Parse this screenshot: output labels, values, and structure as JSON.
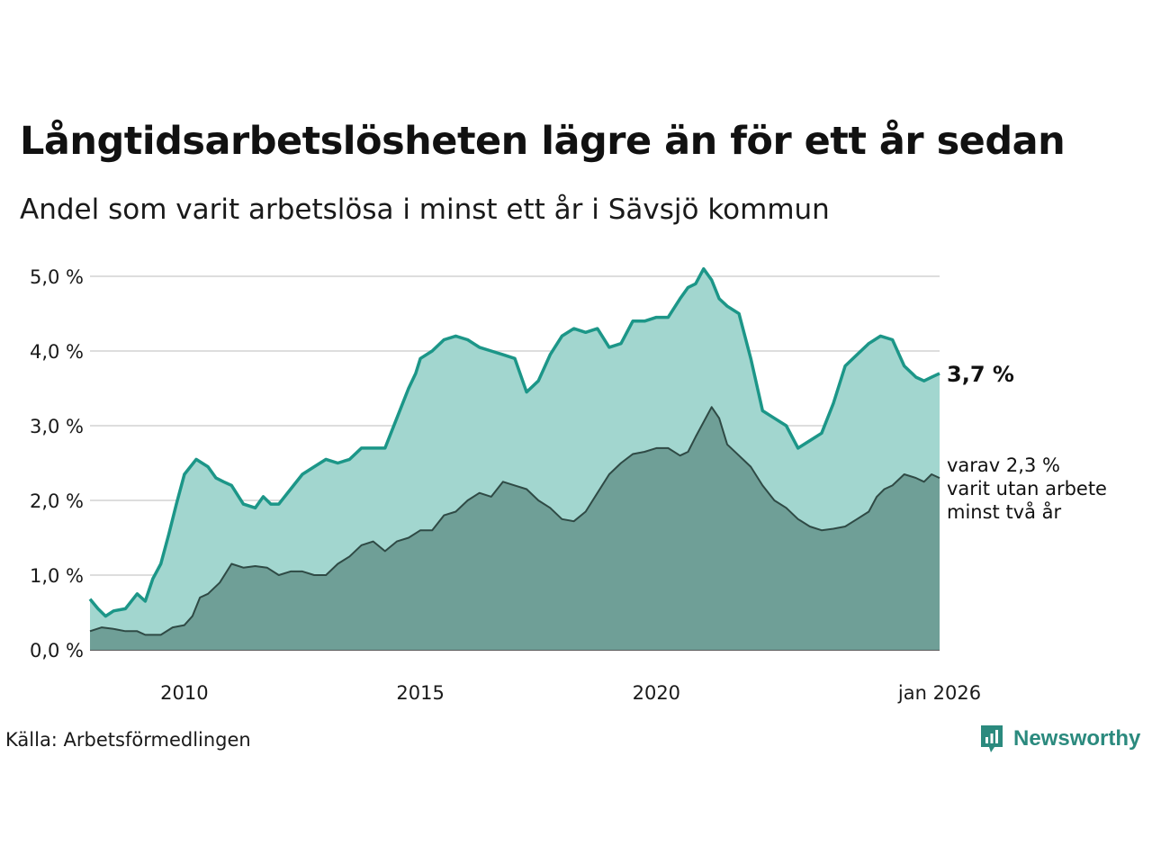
{
  "title": "Långtidsarbetslösheten lägre än för ett år sedan",
  "subtitle": "Andel som varit arbetslösa i minst ett år i Sävsjö kommun",
  "source": "Källa: Arbetsförmedlingen",
  "brand": "Newsworthy",
  "colors": {
    "upper_fill": "#a2d6cf",
    "upper_line": "#1c9688",
    "lower_fill": "#6f9f97",
    "lower_line": "#2f4a45",
    "grid": "#dddddd",
    "brand": "#2b8a7e"
  },
  "chart_data": {
    "type": "area",
    "title": "Långtidsarbetslösheten lägre än för ett år sedan",
    "ylabel": "",
    "xlabel": "",
    "ylim": [
      0,
      5.0
    ],
    "xlim": [
      2008.0,
      2026.0
    ],
    "y_ticks": [
      0,
      1,
      2,
      3,
      4,
      5
    ],
    "y_tick_labels": [
      "0,0 %",
      "1,0 %",
      "2,0 %",
      "3,0 %",
      "4,0 %",
      "5,0 %"
    ],
    "x_ticks": [
      2010,
      2015,
      2020,
      2026
    ],
    "x_tick_labels": [
      "2010",
      "2015",
      "2020",
      "jan 2026"
    ],
    "grid": true,
    "annotations": {
      "last_value": "3,7 %",
      "lower_note": [
        "varav 2,3 %",
        "varit utan arbete",
        "minst två år"
      ]
    },
    "series": [
      {
        "name": "Minst ett år",
        "x": [
          2008.0,
          2008.17,
          2008.33,
          2008.5,
          2008.75,
          2009.0,
          2009.17,
          2009.33,
          2009.5,
          2009.67,
          2009.83,
          2010.0,
          2010.25,
          2010.5,
          2010.67,
          2010.83,
          2011.0,
          2011.25,
          2011.5,
          2011.67,
          2011.83,
          2012.0,
          2012.25,
          2012.5,
          2012.75,
          2013.0,
          2013.25,
          2013.5,
          2013.75,
          2014.0,
          2014.25,
          2014.5,
          2014.75,
          2014.9,
          2015.0,
          2015.25,
          2015.5,
          2015.75,
          2016.0,
          2016.25,
          2016.5,
          2016.75,
          2017.0,
          2017.25,
          2017.5,
          2017.75,
          2018.0,
          2018.25,
          2018.5,
          2018.75,
          2019.0,
          2019.25,
          2019.5,
          2019.75,
          2020.0,
          2020.25,
          2020.5,
          2020.67,
          2020.83,
          2021.0,
          2021.17,
          2021.33,
          2021.5,
          2021.75,
          2022.0,
          2022.25,
          2022.5,
          2022.75,
          2023.0,
          2023.25,
          2023.5,
          2023.75,
          2024.0,
          2024.25,
          2024.5,
          2024.75,
          2025.0,
          2025.25,
          2025.5,
          2025.67,
          2025.83,
          2026.0
        ],
        "values": [
          0.68,
          0.55,
          0.45,
          0.52,
          0.55,
          0.75,
          0.65,
          0.95,
          1.15,
          1.55,
          1.95,
          2.35,
          2.55,
          2.45,
          2.3,
          2.25,
          2.2,
          1.95,
          1.9,
          2.05,
          1.95,
          1.95,
          2.15,
          2.35,
          2.45,
          2.55,
          2.5,
          2.55,
          2.7,
          2.7,
          2.7,
          3.1,
          3.5,
          3.7,
          3.9,
          4.0,
          4.15,
          4.2,
          4.15,
          4.05,
          4.0,
          3.95,
          3.9,
          3.45,
          3.6,
          3.95,
          4.2,
          4.3,
          4.25,
          4.3,
          4.05,
          4.1,
          4.4,
          4.4,
          4.45,
          4.45,
          4.7,
          4.85,
          4.9,
          5.1,
          4.95,
          4.7,
          4.6,
          4.5,
          3.9,
          3.2,
          3.1,
          3.0,
          2.7,
          2.8,
          2.9,
          3.3,
          3.8,
          3.95,
          4.1,
          4.2,
          4.15,
          3.8,
          3.65,
          3.6,
          3.65,
          3.7
        ]
      },
      {
        "name": "Minst två år",
        "x": [
          2008.0,
          2008.25,
          2008.5,
          2008.75,
          2009.0,
          2009.17,
          2009.5,
          2009.75,
          2010.0,
          2010.17,
          2010.33,
          2010.5,
          2010.75,
          2011.0,
          2011.25,
          2011.5,
          2011.75,
          2012.0,
          2012.25,
          2012.5,
          2012.75,
          2013.0,
          2013.25,
          2013.5,
          2013.75,
          2014.0,
          2014.25,
          2014.5,
          2014.75,
          2015.0,
          2015.25,
          2015.5,
          2015.75,
          2016.0,
          2016.25,
          2016.5,
          2016.75,
          2017.0,
          2017.25,
          2017.5,
          2017.75,
          2018.0,
          2018.25,
          2018.5,
          2018.75,
          2019.0,
          2019.25,
          2019.5,
          2019.75,
          2020.0,
          2020.25,
          2020.5,
          2020.67,
          2020.83,
          2021.0,
          2021.17,
          2021.33,
          2021.5,
          2021.75,
          2022.0,
          2022.25,
          2022.5,
          2022.75,
          2023.0,
          2023.25,
          2023.5,
          2023.75,
          2024.0,
          2024.25,
          2024.5,
          2024.67,
          2024.83,
          2025.0,
          2025.25,
          2025.5,
          2025.67,
          2025.83,
          2026.0
        ],
        "values": [
          0.25,
          0.3,
          0.28,
          0.25,
          0.25,
          0.2,
          0.2,
          0.3,
          0.33,
          0.45,
          0.7,
          0.75,
          0.9,
          1.15,
          1.1,
          1.12,
          1.1,
          1.0,
          1.05,
          1.05,
          1.0,
          1.0,
          1.15,
          1.25,
          1.4,
          1.45,
          1.32,
          1.45,
          1.5,
          1.6,
          1.6,
          1.8,
          1.85,
          2.0,
          2.1,
          2.05,
          2.25,
          2.2,
          2.15,
          2.0,
          1.9,
          1.75,
          1.72,
          1.85,
          2.1,
          2.35,
          2.5,
          2.62,
          2.65,
          2.7,
          2.7,
          2.6,
          2.65,
          2.85,
          3.05,
          3.25,
          3.1,
          2.75,
          2.6,
          2.45,
          2.2,
          2.0,
          1.9,
          1.75,
          1.65,
          1.6,
          1.62,
          1.65,
          1.75,
          1.85,
          2.05,
          2.15,
          2.2,
          2.35,
          2.3,
          2.25,
          2.35,
          2.3
        ]
      }
    ]
  }
}
